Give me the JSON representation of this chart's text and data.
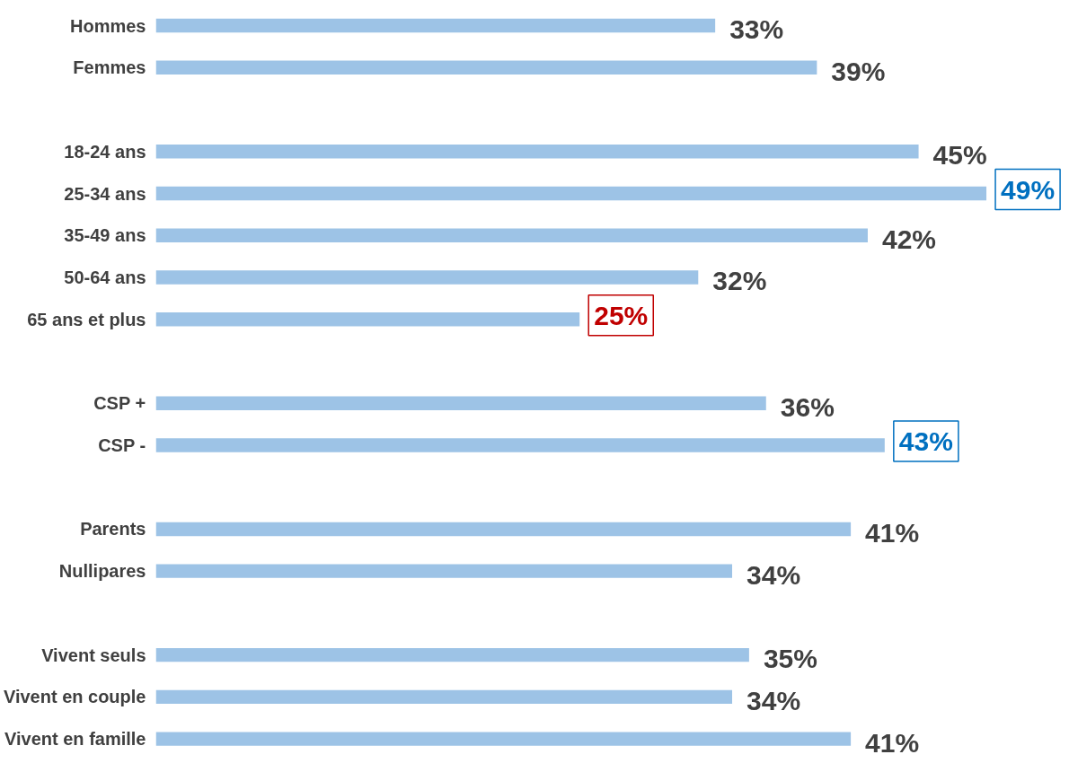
{
  "chart_data": {
    "type": "bar",
    "orientation": "horizontal",
    "categories": [
      "Hommes",
      "Femmes",
      null,
      "18-24 ans",
      "25-34 ans",
      "35-49 ans",
      "50-64 ans",
      "65 ans et plus",
      null,
      "CSP +",
      "CSP -",
      null,
      "Parents",
      "Nullipares",
      null,
      "Vivent seuls",
      "Vivent en couple",
      "Vivent en famille"
    ],
    "values": [
      33,
      39,
      null,
      45,
      49,
      42,
      32,
      25,
      null,
      36,
      43,
      null,
      41,
      34,
      null,
      35,
      34,
      41
    ],
    "value_labels": [
      "33%",
      "39%",
      null,
      "45%",
      null,
      "42%",
      "32%",
      null,
      null,
      "36%",
      null,
      null,
      "41%",
      "34%",
      null,
      "35%",
      "34%",
      "41%"
    ],
    "annotations": [
      {
        "text": "49%",
        "x": 49,
        "y": "25-34 ans"
      },
      {
        "text": "25%",
        "x": 25,
        "y": "65 ans et plus"
      },
      {
        "text": "43%",
        "x": 43,
        "y": "CSP -"
      }
    ],
    "color": "#9dc3e6",
    "tick_labels": "y"
  }
}
